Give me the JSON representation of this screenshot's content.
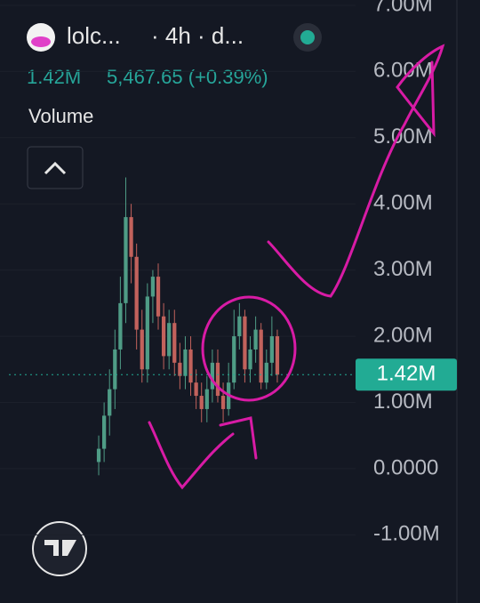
{
  "chart_data": {
    "type": "candlestick",
    "title": "lolc...",
    "subtitle": "· 4h · d...",
    "annotations": [
      "1.42M",
      "5,467.65 (+0.39%)",
      "Volume"
    ],
    "open": [
      0.1,
      0.3,
      0.8,
      1.2,
      1.8,
      2.5,
      3.8,
      3.2,
      2.1,
      1.5,
      2.6,
      2.9,
      2.3,
      1.7,
      2.2,
      1.6,
      1.4,
      1.8,
      1.3,
      1.1,
      0.9,
      1.2,
      1.6,
      1.1,
      0.9,
      1.3,
      2.0,
      2.3,
      1.5,
      1.8,
      2.1,
      1.3,
      1.6,
      2.0
    ],
    "high": [
      0.5,
      1.0,
      1.5,
      2.1,
      2.9,
      4.4,
      4.0,
      3.4,
      2.4,
      2.8,
      3.0,
      3.1,
      2.5,
      2.4,
      2.4,
      1.9,
      2.0,
      2.0,
      1.5,
      1.3,
      1.4,
      1.8,
      1.8,
      1.3,
      1.6,
      2.4,
      2.5,
      2.4,
      2.0,
      2.3,
      2.2,
      1.8,
      2.3,
      2.1
    ],
    "low": [
      -0.1,
      0.1,
      0.5,
      0.9,
      1.5,
      2.2,
      2.8,
      1.8,
      1.3,
      1.3,
      2.2,
      2.1,
      1.5,
      1.5,
      1.4,
      1.2,
      1.2,
      1.1,
      0.9,
      0.7,
      0.7,
      1.0,
      1.0,
      0.7,
      0.8,
      1.2,
      1.8,
      1.3,
      1.3,
      1.6,
      1.2,
      1.2,
      1.4,
      1.3
    ],
    "close": [
      0.3,
      0.8,
      1.2,
      1.8,
      2.5,
      3.8,
      3.2,
      2.1,
      1.5,
      2.6,
      2.9,
      2.3,
      1.7,
      2.2,
      1.6,
      1.4,
      1.8,
      1.3,
      1.1,
      0.9,
      1.2,
      1.6,
      1.1,
      0.9,
      1.3,
      2.0,
      2.3,
      1.5,
      1.8,
      2.1,
      1.3,
      1.6,
      2.0,
      1.42
    ],
    "up_color": "#4f9c86",
    "down_color": "#c2625c",
    "ylim": [
      -2.03,
      7.08
    ],
    "yticks": [
      {
        "value": -1,
        "label": "-1.00M"
      },
      {
        "value": 0,
        "label": "0.0000"
      },
      {
        "value": 1,
        "label": "1.00M"
      },
      {
        "value": 2,
        "label": "2.00M"
      },
      {
        "value": 3,
        "label": "3.00M"
      },
      {
        "value": 4,
        "label": "4.00M"
      },
      {
        "value": 5,
        "label": "5.00M"
      },
      {
        "value": 6,
        "label": "6.00M"
      },
      {
        "value": 7,
        "label": "7.00M"
      }
    ],
    "last_value": {
      "value": 1.42,
      "label": "1.42M"
    },
    "last_color": "#22ab94"
  }
}
